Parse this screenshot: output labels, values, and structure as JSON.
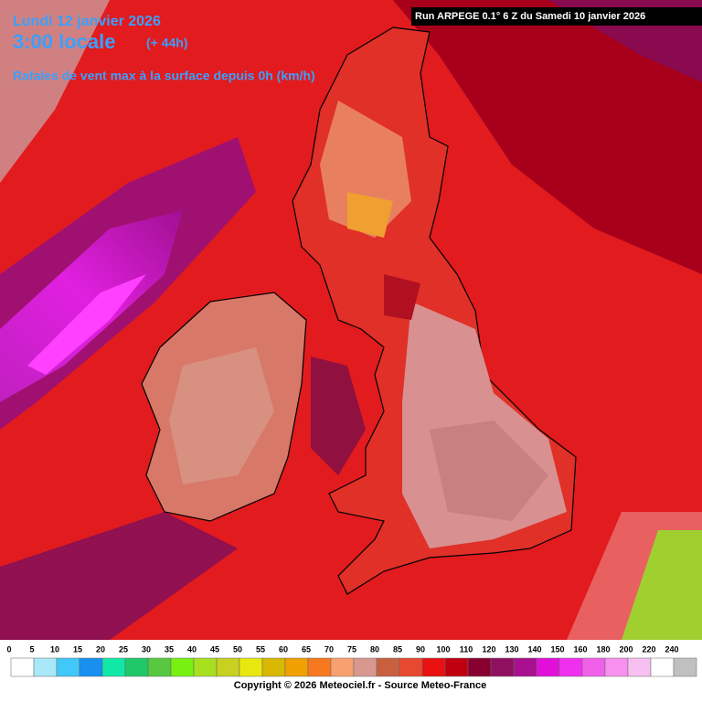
{
  "header": {
    "date": "Lundi 12 janvier 2026",
    "time": "3:00 locale",
    "offset": "(+ 44h)",
    "title": "Rafales de vent max à la surface depuis 0h (km/h)",
    "run": "Run ARPEGE 0.1° 6 Z du Samedi 10 janvier 2026"
  },
  "legend": {
    "labels": [
      0,
      5,
      10,
      15,
      20,
      25,
      30,
      35,
      40,
      45,
      50,
      55,
      60,
      65,
      70,
      75,
      80,
      85,
      90,
      100,
      110,
      120,
      130,
      140,
      150,
      160,
      180,
      200,
      220,
      240
    ],
    "colors": [
      "#ffffff",
      "#a8e8f8",
      "#40c8f8",
      "#1890f0",
      "#10e8a8",
      "#20c868",
      "#58c840",
      "#78f010",
      "#a8e020",
      "#c8d020",
      "#e8e810",
      "#d8b800",
      "#f0a000",
      "#f87820",
      "#f8a070",
      "#d89890",
      "#c86040",
      "#e84830",
      "#e81010",
      "#c00010",
      "#880030",
      "#901060",
      "#a81090",
      "#e010d8",
      "#f030f0",
      "#f060e8",
      "#f890f0",
      "#f8c0f0",
      "#ffffff",
      "#c0c0c0"
    ]
  },
  "footer": {
    "copyright": "Copyright © 2026 Meteociel.fr - Source Meteo-France"
  }
}
